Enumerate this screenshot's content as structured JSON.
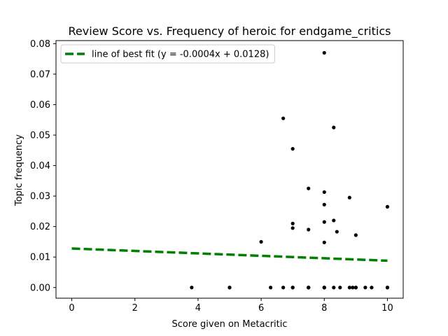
{
  "chart_data": {
    "type": "scatter",
    "title": "Review Score vs. Frequency of heroic for endgame_critics",
    "xlabel": "Score given on Metacritic",
    "ylabel": "Topic frequency",
    "xlim": [
      -0.5,
      10.5
    ],
    "ylim": [
      -0.0035,
      0.081
    ],
    "xticks": [
      0,
      2,
      4,
      6,
      8,
      10
    ],
    "yticks": [
      0.0,
      0.01,
      0.02,
      0.03,
      0.04,
      0.05,
      0.06,
      0.07,
      0.08
    ],
    "xtick_labels": [
      "0",
      "2",
      "4",
      "6",
      "8",
      "10"
    ],
    "ytick_labels": [
      "0.00",
      "0.01",
      "0.02",
      "0.03",
      "0.04",
      "0.05",
      "0.06",
      "0.07",
      "0.08"
    ],
    "grid": false,
    "legend_position": "top-left",
    "series": [
      {
        "kind": "points",
        "color": "#000000",
        "x": [
          3.8,
          5.0,
          5.0,
          6.0,
          6.3,
          6.7,
          6.7,
          7.0,
          7.0,
          7.0,
          7.0,
          7.0,
          7.5,
          7.5,
          7.5,
          7.5,
          7.5,
          8.0,
          8.0,
          8.0,
          8.0,
          8.0,
          8.0,
          8.0,
          8.0,
          8.3,
          8.3,
          8.3,
          8.4,
          8.5,
          8.8,
          8.8,
          8.9,
          9.0,
          9.0,
          9.0,
          9.3,
          9.5,
          10.0,
          10.0,
          10.0
        ],
        "y": [
          0.0,
          0.0,
          0.0,
          0.015,
          0.0,
          0.0555,
          0.0,
          0.0455,
          0.021,
          0.0195,
          0.0,
          0.0,
          0.0325,
          0.019,
          0.0,
          0.0,
          0.0,
          0.077,
          0.0313,
          0.0272,
          0.0215,
          0.0148,
          0.0,
          0.0,
          0.0,
          0.0525,
          0.022,
          0.0,
          0.0183,
          0.0,
          0.0295,
          0.0,
          0.0,
          0.0172,
          0.0,
          0.0,
          0.0,
          0.0,
          0.0265,
          0.0,
          0.0
        ]
      },
      {
        "kind": "line",
        "name": "line of best fit (y = -0.0004x + 0.0128)",
        "color": "#008000",
        "dashed": true,
        "x": [
          0,
          10
        ],
        "y": [
          0.0128,
          0.0088
        ]
      }
    ]
  }
}
